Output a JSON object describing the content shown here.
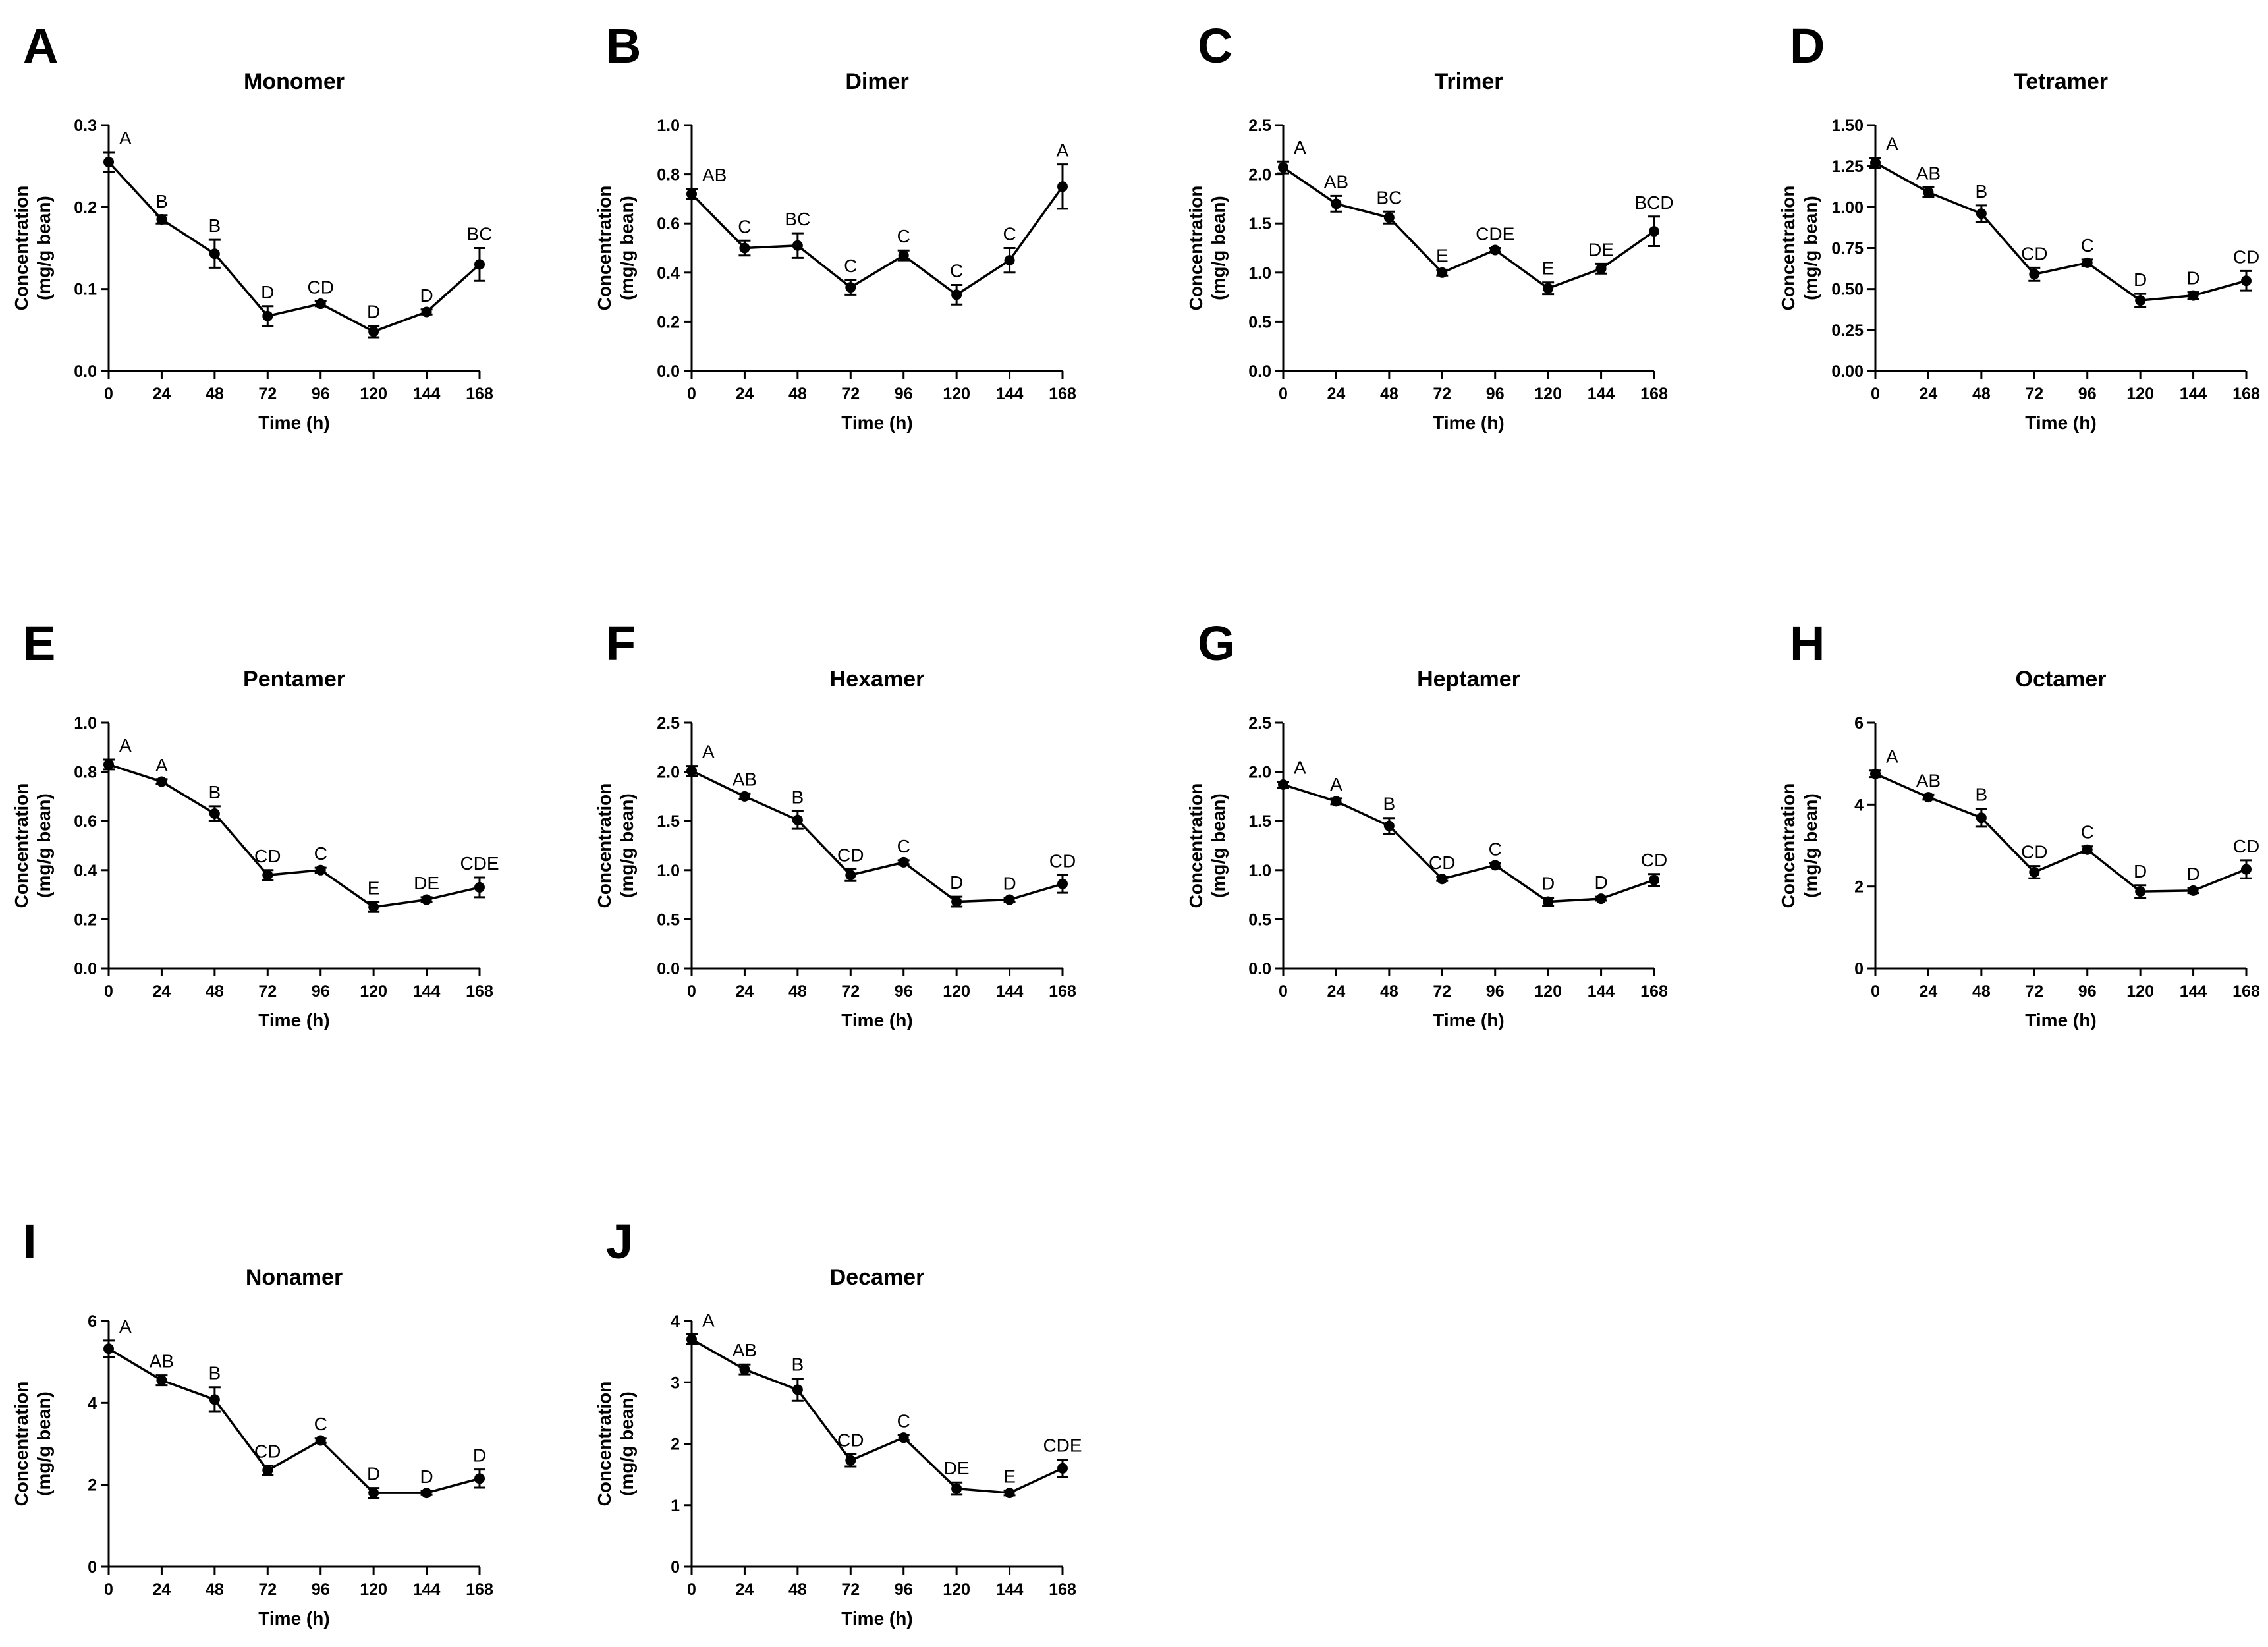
{
  "figure": {
    "x_axis_label": "Time (h)",
    "y_axis_label_line1": "Concentration",
    "y_axis_label_line2": "(mg/g bean)",
    "line_color": "#000000",
    "background_color": "#ffffff"
  },
  "chart_data": [
    {
      "panel": "A",
      "type": "line",
      "title": "Monomer",
      "xlabel": "Time (h)",
      "ylabel": "Concentration (mg/g bean)",
      "x": [
        0,
        24,
        48,
        72,
        96,
        120,
        144,
        168
      ],
      "y": [
        0.255,
        0.185,
        0.143,
        0.067,
        0.082,
        0.048,
        0.072,
        0.13
      ],
      "error": [
        0.012,
        0.005,
        0.017,
        0.012,
        0.003,
        0.007,
        0.003,
        0.02
      ],
      "letters": [
        "A",
        "B",
        "B",
        "D",
        "CD",
        "D",
        "D",
        "BC"
      ],
      "xlim": [
        0,
        168
      ],
      "ylim": [
        0,
        0.3
      ],
      "xticks": [
        "0",
        "24",
        "48",
        "72",
        "96",
        "120",
        "144",
        "168"
      ],
      "yticks": [
        "0.0",
        "0.1",
        "0.2",
        "0.3"
      ]
    },
    {
      "panel": "B",
      "type": "line",
      "title": "Dimer",
      "xlabel": "Time (h)",
      "ylabel": "Concentration (mg/g bean)",
      "x": [
        0,
        24,
        48,
        72,
        96,
        120,
        144,
        168
      ],
      "y": [
        0.72,
        0.5,
        0.51,
        0.34,
        0.47,
        0.31,
        0.45,
        0.75
      ],
      "error": [
        0.02,
        0.03,
        0.05,
        0.03,
        0.02,
        0.04,
        0.05,
        0.09
      ],
      "letters": [
        "AB",
        "C",
        "BC",
        "C",
        "C",
        "C",
        "C",
        "A"
      ],
      "xlim": [
        0,
        168
      ],
      "ylim": [
        0,
        1.0
      ],
      "xticks": [
        "0",
        "24",
        "48",
        "72",
        "96",
        "120",
        "144",
        "168"
      ],
      "yticks": [
        "0.0",
        "0.2",
        "0.4",
        "0.6",
        "0.8",
        "1.0"
      ]
    },
    {
      "panel": "C",
      "type": "line",
      "title": "Trimer",
      "xlabel": "Time (h)",
      "ylabel": "Concentration (mg/g bean)",
      "x": [
        0,
        24,
        48,
        72,
        96,
        120,
        144,
        168
      ],
      "y": [
        2.07,
        1.7,
        1.56,
        1.0,
        1.23,
        0.84,
        1.04,
        1.42
      ],
      "error": [
        0.06,
        0.08,
        0.06,
        0.03,
        0.02,
        0.06,
        0.05,
        0.15
      ],
      "letters": [
        "A",
        "AB",
        "BC",
        "E",
        "CDE",
        "E",
        "DE",
        "BCD"
      ],
      "xlim": [
        0,
        168
      ],
      "ylim": [
        0,
        2.5
      ],
      "xticks": [
        "0",
        "24",
        "48",
        "72",
        "96",
        "120",
        "144",
        "168"
      ],
      "yticks": [
        "0.0",
        "0.5",
        "1.0",
        "1.5",
        "2.0",
        "2.5"
      ]
    },
    {
      "panel": "D",
      "type": "line",
      "title": "Tetramer",
      "xlabel": "Time (h)",
      "ylabel": "Concentration (mg/g bean)",
      "x": [
        0,
        24,
        48,
        72,
        96,
        120,
        144,
        168
      ],
      "y": [
        1.27,
        1.09,
        0.96,
        0.59,
        0.66,
        0.43,
        0.46,
        0.55
      ],
      "error": [
        0.03,
        0.03,
        0.05,
        0.04,
        0.02,
        0.04,
        0.02,
        0.06
      ],
      "letters": [
        "A",
        "AB",
        "B",
        "CD",
        "C",
        "D",
        "D",
        "CD"
      ],
      "xlim": [
        0,
        168
      ],
      "ylim": [
        0,
        1.5
      ],
      "xticks": [
        "0",
        "24",
        "48",
        "72",
        "96",
        "120",
        "144",
        "168"
      ],
      "yticks": [
        "0.00",
        "0.25",
        "0.50",
        "0.75",
        "1.00",
        "1.25",
        "1.50"
      ]
    },
    {
      "panel": "E",
      "type": "line",
      "title": "Pentamer",
      "xlabel": "Time (h)",
      "ylabel": "Concentration (mg/g bean)",
      "x": [
        0,
        24,
        48,
        72,
        96,
        120,
        144,
        168
      ],
      "y": [
        0.83,
        0.76,
        0.63,
        0.38,
        0.4,
        0.25,
        0.28,
        0.33
      ],
      "error": [
        0.02,
        0.01,
        0.03,
        0.02,
        0.01,
        0.02,
        0.01,
        0.04
      ],
      "letters": [
        "A",
        "A",
        "B",
        "CD",
        "C",
        "E",
        "DE",
        "CDE"
      ],
      "xlim": [
        0,
        168
      ],
      "ylim": [
        0,
        1.0
      ],
      "xticks": [
        "0",
        "24",
        "48",
        "72",
        "96",
        "120",
        "144",
        "168"
      ],
      "yticks": [
        "0.0",
        "0.2",
        "0.4",
        "0.6",
        "0.8",
        "1.0"
      ]
    },
    {
      "panel": "F",
      "type": "line",
      "title": "Hexamer",
      "xlabel": "Time (h)",
      "ylabel": "Concentration (mg/g bean)",
      "x": [
        0,
        24,
        48,
        72,
        96,
        120,
        144,
        168
      ],
      "y": [
        2.01,
        1.75,
        1.51,
        0.95,
        1.08,
        0.68,
        0.7,
        0.86
      ],
      "error": [
        0.05,
        0.03,
        0.09,
        0.06,
        0.02,
        0.05,
        0.02,
        0.09
      ],
      "letters": [
        "A",
        "AB",
        "B",
        "CD",
        "C",
        "D",
        "D",
        "CD"
      ],
      "xlim": [
        0,
        168
      ],
      "ylim": [
        0,
        2.5
      ],
      "xticks": [
        "0",
        "24",
        "48",
        "72",
        "96",
        "120",
        "144",
        "168"
      ],
      "yticks": [
        "0.0",
        "0.5",
        "1.0",
        "1.5",
        "2.0",
        "2.5"
      ]
    },
    {
      "panel": "G",
      "type": "line",
      "title": "Heptamer",
      "xlabel": "Time (h)",
      "ylabel": "Concentration (mg/g bean)",
      "x": [
        0,
        24,
        48,
        72,
        96,
        120,
        144,
        168
      ],
      "y": [
        1.87,
        1.7,
        1.45,
        0.91,
        1.05,
        0.68,
        0.71,
        0.9
      ],
      "error": [
        0.03,
        0.03,
        0.08,
        0.02,
        0.02,
        0.04,
        0.02,
        0.06
      ],
      "letters": [
        "A",
        "A",
        "B",
        "CD",
        "C",
        "D",
        "D",
        "CD"
      ],
      "xlim": [
        0,
        168
      ],
      "ylim": [
        0,
        2.5
      ],
      "xticks": [
        "0",
        "24",
        "48",
        "72",
        "96",
        "120",
        "144",
        "168"
      ],
      "yticks": [
        "0.0",
        "0.5",
        "1.0",
        "1.5",
        "2.0",
        "2.5"
      ]
    },
    {
      "panel": "H",
      "type": "line",
      "title": "Octamer",
      "xlabel": "Time (h)",
      "ylabel": "Concentration (mg/g bean)",
      "x": [
        0,
        24,
        48,
        72,
        96,
        120,
        144,
        168
      ],
      "y": [
        4.75,
        4.18,
        3.68,
        2.35,
        2.9,
        1.88,
        1.9,
        2.42
      ],
      "error": [
        0.08,
        0.06,
        0.22,
        0.15,
        0.08,
        0.15,
        0.06,
        0.22
      ],
      "letters": [
        "A",
        "AB",
        "B",
        "CD",
        "C",
        "D",
        "D",
        "CD"
      ],
      "xlim": [
        0,
        168
      ],
      "ylim": [
        0,
        6
      ],
      "xticks": [
        "0",
        "24",
        "48",
        "72",
        "96",
        "120",
        "144",
        "168"
      ],
      "yticks": [
        "0",
        "2",
        "4",
        "6"
      ]
    },
    {
      "panel": "I",
      "type": "line",
      "title": "Nonamer",
      "xlabel": "Time (h)",
      "ylabel": "Concentration (mg/g bean)",
      "x": [
        0,
        24,
        48,
        72,
        96,
        120,
        144,
        168
      ],
      "y": [
        5.32,
        4.55,
        4.08,
        2.35,
        3.08,
        1.8,
        1.8,
        2.15
      ],
      "error": [
        0.2,
        0.12,
        0.3,
        0.12,
        0.06,
        0.12,
        0.05,
        0.22
      ],
      "letters": [
        "A",
        "AB",
        "B",
        "CD",
        "C",
        "D",
        "D",
        "D"
      ],
      "xlim": [
        0,
        168
      ],
      "ylim": [
        0,
        6
      ],
      "xticks": [
        "0",
        "24",
        "48",
        "72",
        "96",
        "120",
        "144",
        "168"
      ],
      "yticks": [
        "0",
        "2",
        "4",
        "6"
      ]
    },
    {
      "panel": "J",
      "type": "line",
      "title": "Decamer",
      "xlabel": "Time (h)",
      "ylabel": "Concentration (mg/g bean)",
      "x": [
        0,
        24,
        48,
        72,
        96,
        120,
        144,
        168
      ],
      "y": [
        3.7,
        3.21,
        2.88,
        1.73,
        2.1,
        1.27,
        1.2,
        1.6
      ],
      "error": [
        0.08,
        0.08,
        0.18,
        0.1,
        0.04,
        0.1,
        0.04,
        0.14
      ],
      "letters": [
        "A",
        "AB",
        "B",
        "CD",
        "C",
        "DE",
        "E",
        "CDE"
      ],
      "xlim": [
        0,
        168
      ],
      "ylim": [
        0,
        4
      ],
      "xticks": [
        "0",
        "24",
        "48",
        "72",
        "96",
        "120",
        "144",
        "168"
      ],
      "yticks": [
        "0",
        "1",
        "2",
        "3",
        "4"
      ]
    }
  ]
}
